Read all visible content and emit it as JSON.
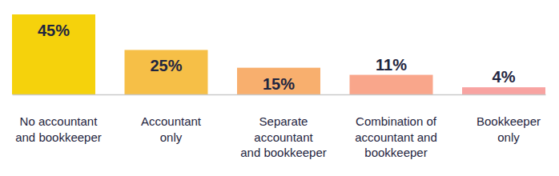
{
  "chart_data": {
    "type": "bar",
    "categories": [
      "No accountant\nand bookkeeper",
      "Accountant\nonly",
      "Separate\naccountant\nand bookkeeper",
      "Combination of\naccountant and\nbookkeeper",
      "Bookkeeper\nonly"
    ],
    "values": [
      45,
      25,
      15,
      11,
      4
    ],
    "value_labels": [
      "45%",
      "25%",
      "15%",
      "11%",
      "4%"
    ],
    "colors": [
      "#f5d20c",
      "#f6bf47",
      "#f8af6e",
      "#f9a68b",
      "#f8a3a1"
    ],
    "ylim": [
      0,
      45
    ],
    "data_labels": true,
    "tick_labels": "x"
  }
}
